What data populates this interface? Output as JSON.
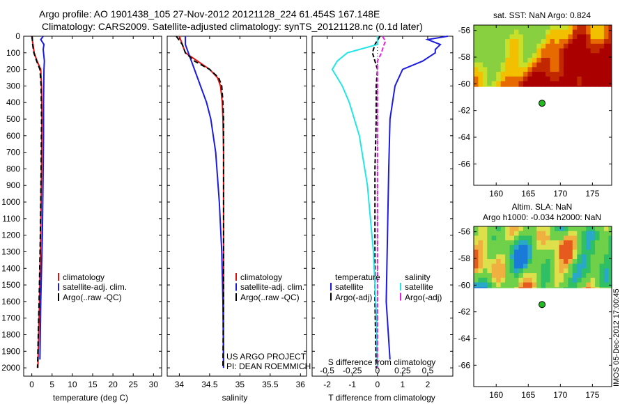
{
  "header": {
    "line1": "Argo profile: AO 1901438_105 27-Nov-2012 20121128_224 61.454S 167.148E",
    "line2": "Climatology: CARS2009. Satellite-adjusted climatology: synTS_20121128.nc (0.1d later)"
  },
  "colors": {
    "clim": "#e01010",
    "sat": "#1a1ae0",
    "argo": "#000000",
    "sat_s": "#22e6e6",
    "argo_s": "#e020e0"
  },
  "depth_ticks": [
    0,
    100,
    200,
    300,
    400,
    500,
    600,
    700,
    800,
    900,
    1000,
    1100,
    1200,
    1300,
    1400,
    1500,
    1600,
    1700,
    1800,
    1900,
    2000
  ],
  "chart_data": [
    {
      "type": "line",
      "xlabel": "temperature (deg C)",
      "xlim": [
        -2,
        32
      ],
      "ylim": [
        0,
        2050
      ],
      "xticks": [
        0,
        5,
        10,
        15,
        20,
        25,
        30
      ],
      "legend": [
        "climatology",
        "satellite-adj. clim.",
        "Argo(..raw -QC)"
      ],
      "series": [
        {
          "name": "climatology",
          "depth": [
            0,
            50,
            100,
            150,
            200,
            300,
            500,
            800,
            1200,
            1600,
            2000
          ],
          "values": [
            0.0,
            0.3,
            0.6,
            1.3,
            2.2,
            2.4,
            2.5,
            2.4,
            2.2,
            1.9,
            1.5
          ]
        },
        {
          "name": "satellite-adj. clim.",
          "depth": [
            0,
            20,
            50,
            80,
            100,
            150,
            200,
            400,
            600,
            800,
            1200,
            1600,
            1950
          ],
          "values": [
            2.8,
            2.2,
            3.0,
            2.8,
            2.9,
            3.1,
            3.0,
            2.9,
            2.9,
            2.8,
            2.6,
            2.2,
            2.0
          ]
        },
        {
          "name": "Argo(..raw -QC)",
          "depth": [
            0,
            50,
            100,
            150,
            200,
            300,
            500,
            800,
            1200,
            1600,
            2000
          ],
          "values": [
            0.1,
            0.2,
            0.5,
            1.2,
            2.0,
            2.3,
            2.4,
            2.3,
            2.1,
            1.8,
            1.4
          ]
        }
      ]
    },
    {
      "type": "line",
      "xlabel": "salinity",
      "xlim": [
        33.8,
        36.1
      ],
      "ylim": [
        0,
        2050
      ],
      "xticks": [
        34,
        34.5,
        35,
        35.5,
        36
      ],
      "legend": [
        "climatology",
        "satellite-adj. clim.",
        "Argo(..raw -QC)"
      ],
      "note1": "US ARGO PROJECT",
      "note2": "PI: DEAN ROEMMICH",
      "series": [
        {
          "name": "climatology",
          "depth": [
            0,
            50,
            100,
            150,
            200,
            250,
            300,
            400,
            500,
            700,
            1000,
            1500,
            2000
          ],
          "values": [
            34.0,
            34.05,
            34.1,
            34.3,
            34.5,
            34.63,
            34.68,
            34.71,
            34.72,
            34.73,
            34.73,
            34.73,
            34.73
          ]
        },
        {
          "name": "satellite-adj. clim.",
          "depth": [
            0,
            50,
            100,
            200,
            300,
            400,
            500,
            700,
            1000,
            1300,
            1600,
            2000
          ],
          "values": [
            34.1,
            34.1,
            34.15,
            34.25,
            34.35,
            34.45,
            34.52,
            34.6,
            34.66,
            34.7,
            34.72,
            34.73
          ]
        },
        {
          "name": "Argo(..raw -QC)",
          "depth": [
            0,
            50,
            100,
            150,
            200,
            250,
            300,
            400,
            500,
            700,
            1000,
            1500,
            2000
          ],
          "values": [
            33.95,
            34.05,
            34.1,
            34.25,
            34.5,
            34.65,
            34.7,
            34.72,
            34.73,
            34.73,
            34.73,
            34.73,
            34.72
          ]
        }
      ]
    },
    {
      "type": "line",
      "xlabel": "T difference from climatology",
      "xlabel2": "S difference from climatology",
      "xlim": [
        -2.6,
        3.0
      ],
      "ylim": [
        0,
        2050
      ],
      "xticks": [
        -2,
        -1,
        0,
        1,
        2
      ],
      "sticks": [
        -0.5,
        -0.25,
        0,
        0.25,
        0.5
      ],
      "legend_head_t": "temperature",
      "legend_head_s": "salinity",
      "legend_t": [
        "satellite",
        "Argo(-adj)"
      ],
      "legend_s": [
        "satellite",
        "Argo(-adj)"
      ],
      "series": [
        {
          "name": "T satellite",
          "depth": [
            0,
            20,
            50,
            80,
            100,
            150,
            200,
            300,
            500,
            800,
            1200,
            1600,
            1950
          ],
          "values": [
            2.8,
            2.0,
            2.5,
            2.3,
            2.3,
            1.8,
            1.0,
            0.7,
            0.5,
            0.45,
            0.4,
            0.35,
            0.5
          ]
        },
        {
          "name": "T Argo(-adj)",
          "depth": [
            0,
            50,
            100,
            150,
            200,
            300,
            500,
            800,
            1200,
            1600,
            2000
          ],
          "values": [
            0.1,
            -0.1,
            -0.2,
            -0.1,
            0.0,
            -0.05,
            -0.05,
            -0.1,
            -0.1,
            -0.1,
            -0.05
          ]
        },
        {
          "name": "S satellite",
          "depth": [
            0,
            50,
            100,
            150,
            200,
            250,
            300,
            400,
            600,
            900,
            1300,
            1700,
            2000
          ],
          "values": [
            0.0,
            0.0,
            -0.3,
            -0.4,
            -0.45,
            -0.4,
            -0.35,
            -0.28,
            -0.18,
            -0.1,
            -0.04,
            -0.01,
            0.0
          ]
        },
        {
          "name": "S Argo(-adj)",
          "depth": [
            0,
            30,
            60,
            100,
            150,
            200,
            300,
            500,
            800,
            1200,
            1600,
            2000
          ],
          "values": [
            0.05,
            0.08,
            0.06,
            0.04,
            0.0,
            0.0,
            0.0,
            0.0,
            0.0,
            0.0,
            0.0,
            0.0
          ]
        }
      ]
    },
    {
      "type": "heatmap",
      "title": "sat. SST: NaN Argo: 0.824",
      "xlim": [
        156.5,
        178
      ],
      "ylim": [
        -67.6,
        -55.6
      ],
      "xticks": [
        160,
        165,
        170,
        175
      ],
      "yticks": [
        -56,
        -58,
        -60,
        -62,
        -64,
        -66
      ],
      "marker": {
        "lon": 167.148,
        "lat": -61.454,
        "color": "#22bb22"
      }
    },
    {
      "type": "heatmap",
      "title": "Altim. SLA: NaN",
      "title2": "Argo h1000: -0.034 h2000: NaN",
      "xlim": [
        156.5,
        178
      ],
      "ylim": [
        -67.6,
        -55.6
      ],
      "xticks": [
        160,
        165,
        170,
        175
      ],
      "yticks": [
        -56,
        -58,
        -60,
        -62,
        -64,
        -66
      ],
      "marker": {
        "lon": 167.148,
        "lat": -61.454,
        "color": "#22bb22"
      }
    }
  ],
  "side_label": "IMOS 05-Dec-2012 17:00:45"
}
